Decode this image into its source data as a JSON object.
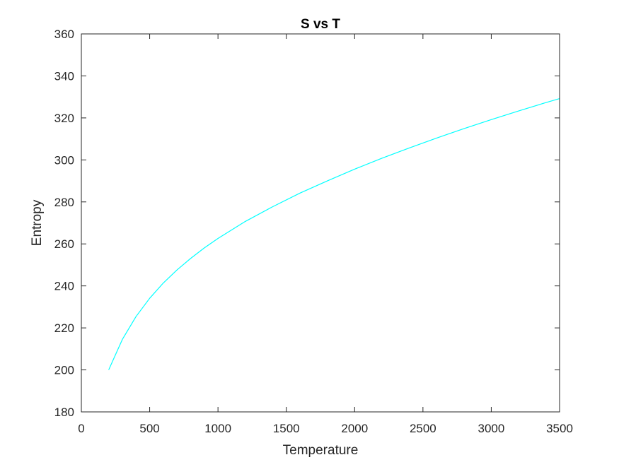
{
  "chart_data": {
    "type": "line",
    "title": "S vs T",
    "xlabel": "Temperature",
    "ylabel": "Entropy",
    "xlim": [
      0,
      3500
    ],
    "ylim": [
      180,
      360
    ],
    "xticks": [
      0,
      500,
      1000,
      1500,
      2000,
      2500,
      3000,
      3500
    ],
    "yticks": [
      180,
      200,
      220,
      240,
      260,
      280,
      300,
      320,
      340,
      360
    ],
    "grid": false,
    "box": true,
    "series": [
      {
        "color": "#00ffff",
        "x": [
          200,
          300,
          400,
          500,
          600,
          700,
          800,
          900,
          1000,
          1200,
          1400,
          1600,
          1800,
          2000,
          2200,
          2400,
          2600,
          2800,
          3000,
          3200,
          3400,
          3500
        ],
        "y": [
          200,
          214.5,
          225.4,
          234.1,
          241.4,
          247.6,
          253.1,
          258.1,
          262.6,
          270.7,
          277.7,
          284.2,
          290.0,
          295.6,
          300.8,
          305.7,
          310.4,
          314.9,
          319.2,
          323.3,
          327.3,
          329.2
        ]
      }
    ],
    "colors": {
      "axis": "#262626",
      "background": "#ffffff"
    }
  }
}
